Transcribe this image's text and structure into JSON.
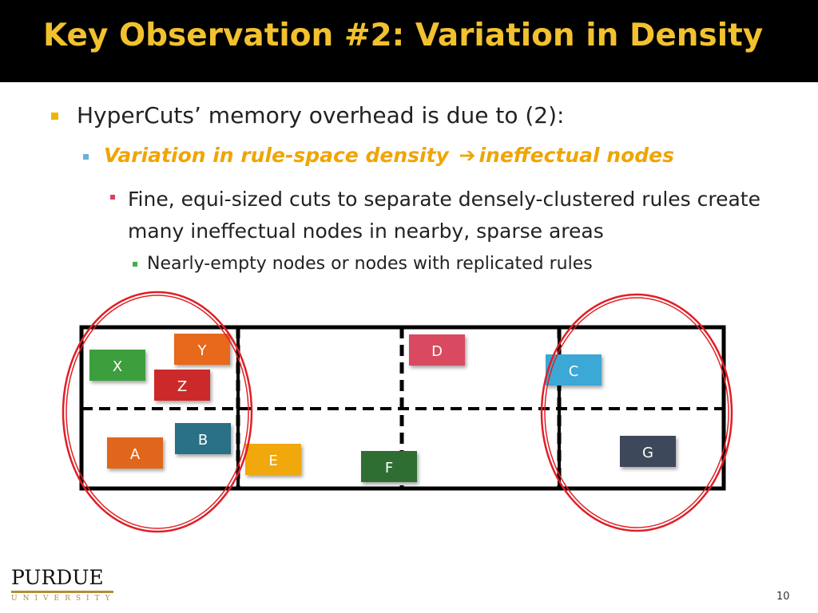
{
  "slide": {
    "title": "Key Observation #2: Variation in Density",
    "bullets": {
      "level1": "HyperCuts’ memory overhead is due to (2):",
      "level2_a": "Variation in rule-space density",
      "level2_arrow": "➔",
      "level2_b": "ineffectual nodes",
      "level3": "Fine, equi-sized cuts to separate densely-clustered rules create many ineffectual nodes in nearby, sparse areas",
      "level4": "Nearly-empty nodes or nodes with replicated rules"
    },
    "rules": [
      {
        "label": "X",
        "color": "#3d9e3d"
      },
      {
        "label": "Y",
        "color": "#e8681c"
      },
      {
        "label": "Z",
        "color": "#cc2a2a"
      },
      {
        "label": "D",
        "color": "#d94a5e"
      },
      {
        "label": "C",
        "color": "#3aa8d6"
      },
      {
        "label": "A",
        "color": "#e0661f"
      },
      {
        "label": "B",
        "color": "#2a6f86"
      },
      {
        "label": "E",
        "color": "#f0a80e"
      },
      {
        "label": "F",
        "color": "#2e6e33"
      },
      {
        "label": "G",
        "color": "#3e4a5a"
      }
    ],
    "highlight_color": "#e01f26",
    "logo": {
      "main": "PURDUE",
      "sub": "UNIVERSITY"
    },
    "page_number": "10"
  }
}
